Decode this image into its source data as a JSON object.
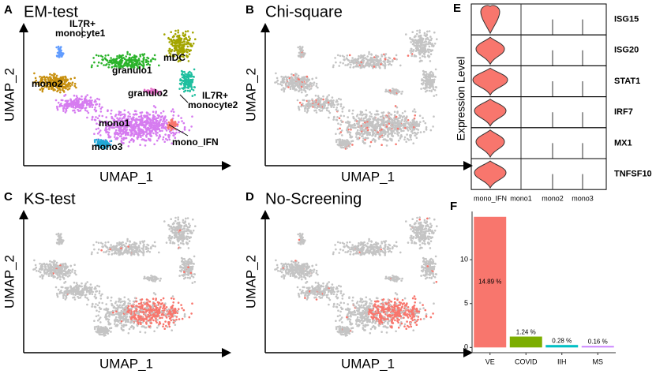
{
  "umap_panels": [
    {
      "letter": "A",
      "title": "EM-test",
      "x_label": "UMAP_1",
      "y_label": "UMAP_2",
      "cluster_labels": [
        [
          "IL7R+",
          "monocyte1"
        ],
        [
          "mDC"
        ],
        [
          "granulo1"
        ],
        [
          "mono2"
        ],
        [
          "granulo2"
        ],
        [
          "IL7R+",
          "monocyte2"
        ],
        [
          "mono1"
        ],
        [
          "mono3"
        ],
        [
          "mono_IFN"
        ]
      ]
    },
    {
      "letter": "B",
      "title": "Chi-square",
      "x_label": "UMAP_1",
      "y_label": "UMAP_2"
    },
    {
      "letter": "C",
      "title": "KS-test",
      "x_label": "UMAP_1",
      "y_label": "UMAP_2"
    },
    {
      "letter": "D",
      "title": "No-Screening",
      "x_label": "UMAP_1",
      "y_label": "UMAP_2"
    }
  ],
  "violin": {
    "letter": "E",
    "y_label": "Expression Level",
    "genes": [
      "ISG15",
      "ISG20",
      "STAT1",
      "IRF7",
      "MX1",
      "TNFSF10"
    ],
    "groups": [
      "mono_IFN",
      "mono1",
      "mono2",
      "mono3"
    ]
  },
  "chart_data": {
    "type": "bar",
    "letter": "F",
    "categories": [
      "VE",
      "COVID",
      "IIH",
      "MS"
    ],
    "values": [
      14.89,
      1.24,
      0.28,
      0.16
    ],
    "value_labels": [
      "14.89 %",
      "1.24 %",
      "0.28 %",
      "0.16 %"
    ],
    "colors": [
      "#f8766d",
      "#7cae00",
      "#00bfc4",
      "#c77cff"
    ],
    "ylim": [
      -0.6,
      15.5
    ],
    "yticks": [
      0,
      5,
      10
    ]
  }
}
